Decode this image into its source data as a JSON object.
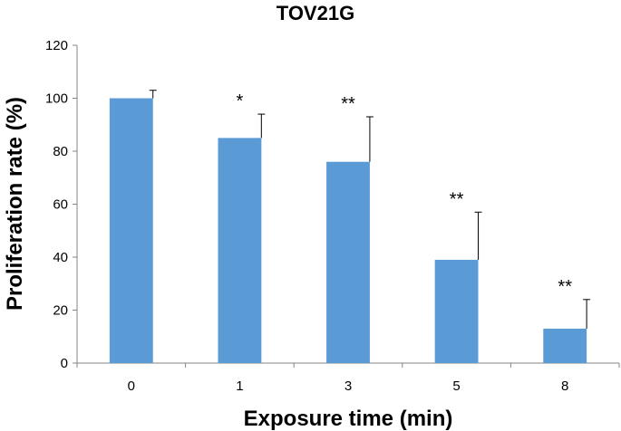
{
  "chart_data": {
    "type": "bar",
    "title": "TOV21G",
    "xlabel": "Exposure time (min)",
    "ylabel": "Proliferation rate (%)",
    "categories": [
      "0",
      "1",
      "3",
      "5",
      "8"
    ],
    "values": [
      100,
      85,
      76,
      39,
      13
    ],
    "error_upper": [
      3,
      9,
      17,
      18,
      11
    ],
    "significance": [
      "",
      "*",
      "**",
      "**",
      "**"
    ],
    "ylim": [
      0,
      120
    ],
    "yticks": [
      "0",
      "20",
      "40",
      "60",
      "80",
      "100",
      "120"
    ],
    "grid": false,
    "legend": "none",
    "bar_color": "#5b9bd5",
    "axis_color": "#868686"
  }
}
